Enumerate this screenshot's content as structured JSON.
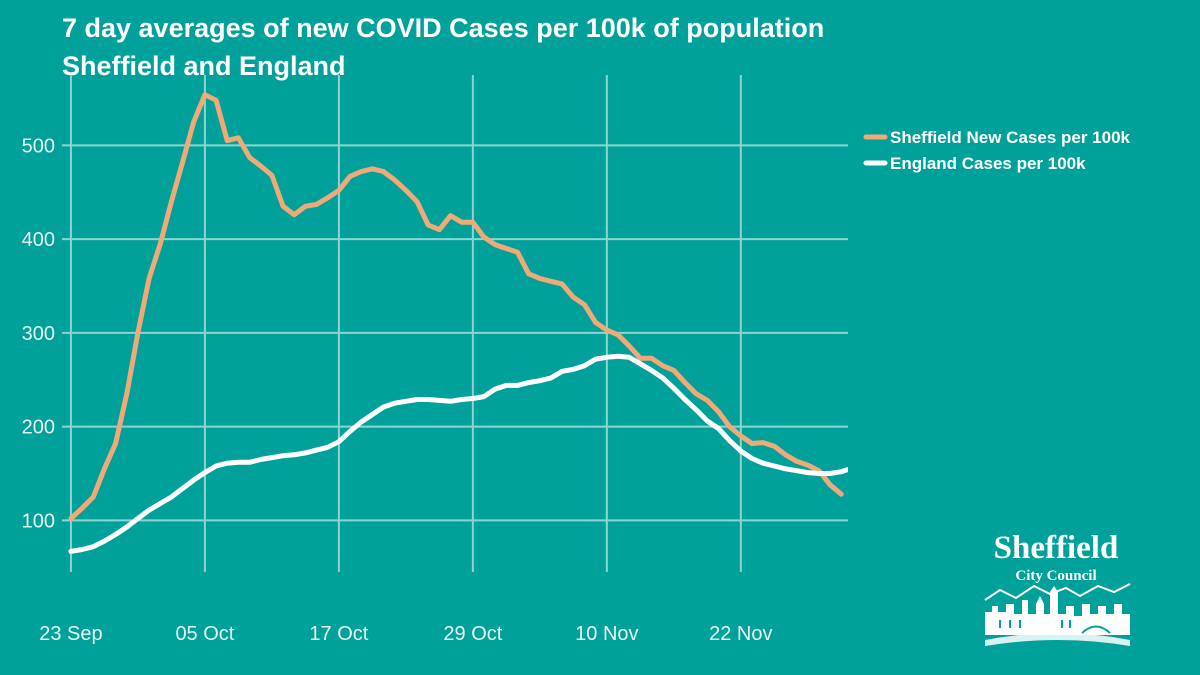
{
  "colors": {
    "background": "#00a19a",
    "grid": "#8fd5cf",
    "sheffield": "#f0aa78",
    "england": "#ffffff"
  },
  "logo": {
    "name": "Sheffield",
    "subtitle": "City Council"
  },
  "chart_data": {
    "type": "line",
    "title": "7 day averages of new COVID Cases per 100k of population",
    "subtitle": "Sheffield and England",
    "xlabel": "",
    "ylabel": "",
    "x_ticks": [
      "23 Sep",
      "05 Oct",
      "17 Oct",
      "29 Oct",
      "10 Nov",
      "22 Nov"
    ],
    "y_ticks": [
      100,
      200,
      300,
      400,
      500
    ],
    "x_range": [
      "2020-09-23",
      "2020-12-01"
    ],
    "ylim": [
      45,
      575
    ],
    "grid": true,
    "legend_position": "right",
    "series": [
      {
        "name": "Sheffield New Cases per 100k",
        "color": "#f0aa78",
        "points": [
          [
            "2020-09-23",
            102
          ],
          [
            "2020-09-24",
            113
          ],
          [
            "2020-09-25",
            125
          ],
          [
            "2020-09-26",
            155
          ],
          [
            "2020-09-27",
            182
          ],
          [
            "2020-09-28",
            235
          ],
          [
            "2020-09-29",
            300
          ],
          [
            "2020-09-30",
            358
          ],
          [
            "2020-10-01",
            395
          ],
          [
            "2020-10-02",
            440
          ],
          [
            "2020-10-03",
            482
          ],
          [
            "2020-10-04",
            525
          ],
          [
            "2020-10-05",
            554
          ],
          [
            "2020-10-06",
            548
          ],
          [
            "2020-10-07",
            505
          ],
          [
            "2020-10-08",
            508
          ],
          [
            "2020-10-09",
            487
          ],
          [
            "2020-10-10",
            478
          ],
          [
            "2020-10-11",
            468
          ],
          [
            "2020-10-12",
            435
          ],
          [
            "2020-10-13",
            426
          ],
          [
            "2020-10-14",
            435
          ],
          [
            "2020-10-15",
            437
          ],
          [
            "2020-10-16",
            444
          ],
          [
            "2020-10-17",
            452
          ],
          [
            "2020-10-18",
            467
          ],
          [
            "2020-10-19",
            472
          ],
          [
            "2020-10-20",
            475
          ],
          [
            "2020-10-21",
            472
          ],
          [
            "2020-10-22",
            463
          ],
          [
            "2020-10-23",
            452
          ],
          [
            "2020-10-24",
            440
          ],
          [
            "2020-10-25",
            415
          ],
          [
            "2020-10-26",
            410
          ],
          [
            "2020-10-27",
            425
          ],
          [
            "2020-10-28",
            418
          ],
          [
            "2020-10-29",
            418
          ],
          [
            "2020-10-30",
            402
          ],
          [
            "2020-10-31",
            394
          ],
          [
            "2020-11-01",
            390
          ],
          [
            "2020-11-02",
            386
          ],
          [
            "2020-11-03",
            363
          ],
          [
            "2020-11-04",
            358
          ],
          [
            "2020-11-05",
            355
          ],
          [
            "2020-11-06",
            352
          ],
          [
            "2020-11-07",
            338
          ],
          [
            "2020-11-08",
            330
          ],
          [
            "2020-11-09",
            311
          ],
          [
            "2020-11-10",
            303
          ],
          [
            "2020-11-11",
            298
          ],
          [
            "2020-11-12",
            286
          ],
          [
            "2020-11-13",
            273
          ],
          [
            "2020-11-14",
            273
          ],
          [
            "2020-11-15",
            265
          ],
          [
            "2020-11-16",
            260
          ],
          [
            "2020-11-17",
            247
          ],
          [
            "2020-11-18",
            235
          ],
          [
            "2020-11-19",
            228
          ],
          [
            "2020-11-20",
            216
          ],
          [
            "2020-11-21",
            200
          ],
          [
            "2020-11-22",
            190
          ],
          [
            "2020-11-23",
            182
          ],
          [
            "2020-11-24",
            183
          ],
          [
            "2020-11-25",
            179
          ],
          [
            "2020-11-26",
            170
          ],
          [
            "2020-11-27",
            163
          ],
          [
            "2020-11-28",
            159
          ],
          [
            "2020-11-29",
            153
          ],
          [
            "2020-11-30",
            138
          ],
          [
            "2020-12-01",
            128
          ]
        ]
      },
      {
        "name": "England Cases per 100k",
        "color": "#ffffff",
        "points": [
          [
            "2020-09-23",
            67
          ],
          [
            "2020-09-24",
            69
          ],
          [
            "2020-09-25",
            72
          ],
          [
            "2020-09-26",
            78
          ],
          [
            "2020-09-27",
            85
          ],
          [
            "2020-09-28",
            93
          ],
          [
            "2020-09-29",
            102
          ],
          [
            "2020-09-30",
            111
          ],
          [
            "2020-10-01",
            118
          ],
          [
            "2020-10-02",
            125
          ],
          [
            "2020-10-03",
            134
          ],
          [
            "2020-10-04",
            143
          ],
          [
            "2020-10-05",
            151
          ],
          [
            "2020-10-06",
            158
          ],
          [
            "2020-10-07",
            161
          ],
          [
            "2020-10-08",
            162
          ],
          [
            "2020-10-09",
            162
          ],
          [
            "2020-10-10",
            165
          ],
          [
            "2020-10-11",
            167
          ],
          [
            "2020-10-12",
            169
          ],
          [
            "2020-10-13",
            170
          ],
          [
            "2020-10-14",
            172
          ],
          [
            "2020-10-15",
            175
          ],
          [
            "2020-10-16",
            178
          ],
          [
            "2020-10-17",
            184
          ],
          [
            "2020-10-18",
            195
          ],
          [
            "2020-10-19",
            205
          ],
          [
            "2020-10-20",
            213
          ],
          [
            "2020-10-21",
            221
          ],
          [
            "2020-10-22",
            225
          ],
          [
            "2020-10-23",
            227
          ],
          [
            "2020-10-24",
            229
          ],
          [
            "2020-10-25",
            229
          ],
          [
            "2020-10-26",
            228
          ],
          [
            "2020-10-27",
            227
          ],
          [
            "2020-10-28",
            229
          ],
          [
            "2020-10-29",
            230
          ],
          [
            "2020-10-30",
            232
          ],
          [
            "2020-10-31",
            240
          ],
          [
            "2020-11-01",
            244
          ],
          [
            "2020-11-02",
            244
          ],
          [
            "2020-11-03",
            247
          ],
          [
            "2020-11-04",
            249
          ],
          [
            "2020-11-05",
            252
          ],
          [
            "2020-11-06",
            259
          ],
          [
            "2020-11-07",
            261
          ],
          [
            "2020-11-08",
            265
          ],
          [
            "2020-11-09",
            272
          ],
          [
            "2020-11-10",
            274
          ],
          [
            "2020-11-11",
            275
          ],
          [
            "2020-11-12",
            274
          ],
          [
            "2020-11-13",
            267
          ],
          [
            "2020-11-14",
            260
          ],
          [
            "2020-11-15",
            252
          ],
          [
            "2020-11-16",
            241
          ],
          [
            "2020-11-17",
            229
          ],
          [
            "2020-11-18",
            218
          ],
          [
            "2020-11-19",
            206
          ],
          [
            "2020-11-20",
            198
          ],
          [
            "2020-11-21",
            185
          ],
          [
            "2020-11-22",
            174
          ],
          [
            "2020-11-23",
            166
          ],
          [
            "2020-11-24",
            161
          ],
          [
            "2020-11-25",
            158
          ],
          [
            "2020-11-26",
            155
          ],
          [
            "2020-11-27",
            153
          ],
          [
            "2020-11-28",
            151
          ],
          [
            "2020-11-29",
            150
          ],
          [
            "2020-11-30",
            150
          ],
          [
            "2020-12-01",
            152
          ],
          [
            "2020-12-02",
            156
          ]
        ]
      }
    ]
  }
}
